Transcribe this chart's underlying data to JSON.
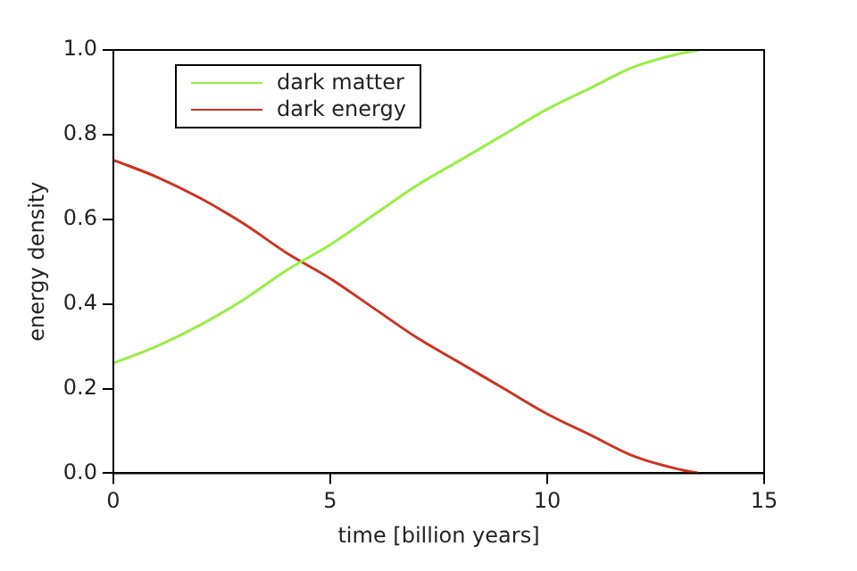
{
  "chart_data": {
    "type": "line",
    "xlabel": "time [billion years]",
    "ylabel": "energy density",
    "xlim": [
      0,
      15
    ],
    "xticks": [
      0,
      5,
      10,
      15
    ],
    "ylim": [
      0,
      1
    ],
    "yticks": [
      {
        "value": 0,
        "label": "0.0"
      },
      {
        "value": 0.2,
        "label": "0.2"
      },
      {
        "value": 0.4,
        "label": "0.4"
      },
      {
        "value": 0.6,
        "label": "0.6"
      },
      {
        "value": 0.8,
        "label": "0.8"
      },
      {
        "value": 1,
        "label": "1.0"
      }
    ],
    "grid": false,
    "legend": "top left",
    "marker": "none",
    "line_style": "solid",
    "series": [
      {
        "name": "dark matter",
        "color": "#99ee44",
        "x": [
          0,
          1,
          2,
          3,
          4,
          5,
          6,
          7,
          8,
          9,
          10,
          11,
          12,
          13,
          13.5
        ],
        "values": [
          0.26,
          0.3,
          0.35,
          0.41,
          0.48,
          0.54,
          0.61,
          0.68,
          0.74,
          0.8,
          0.86,
          0.91,
          0.96,
          0.99,
          1.0
        ]
      },
      {
        "name": "dark energy",
        "color": "#cc3322",
        "x": [
          0,
          1,
          2,
          3,
          4,
          5,
          6,
          7,
          8,
          9,
          10,
          11,
          12,
          13,
          13.5
        ],
        "values": [
          0.74,
          0.7,
          0.65,
          0.59,
          0.52,
          0.46,
          0.39,
          0.32,
          0.26,
          0.2,
          0.14,
          0.09,
          0.04,
          0.01,
          0.0
        ]
      }
    ]
  }
}
